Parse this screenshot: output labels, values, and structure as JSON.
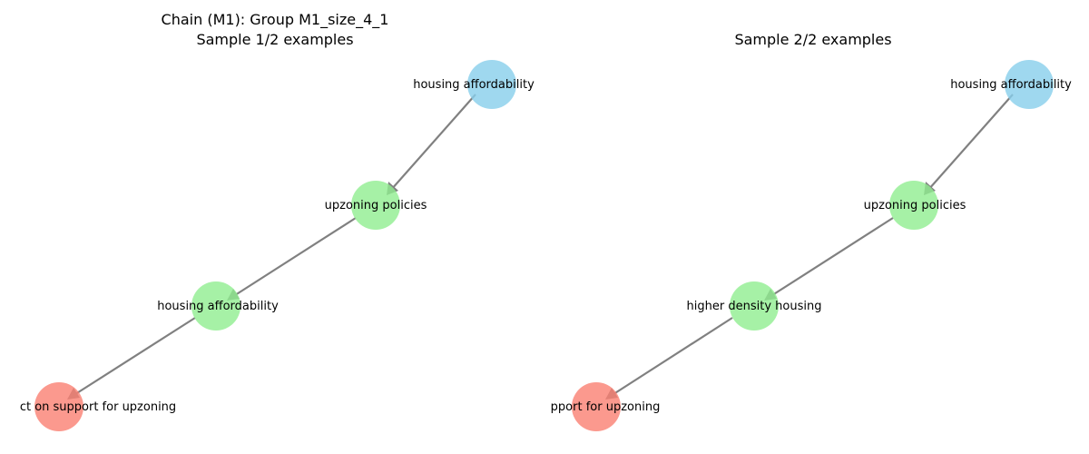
{
  "panels": [
    {
      "title_line1": "Chain (M1): Group M1_size_4_1",
      "title_line2": "Sample 1/2 examples",
      "nodes": [
        {
          "label": "housing affordability",
          "color": "#87CEEB"
        },
        {
          "label": "upzoning policies",
          "color": "#90EE90"
        },
        {
          "label": "housing affordability",
          "color": "#90EE90"
        },
        {
          "label": "ct on support for upzoning",
          "color": "#FA8072"
        }
      ]
    },
    {
      "title_line1": "",
      "title_line2": "Sample 2/2 examples",
      "nodes": [
        {
          "label": "housing affordability",
          "color": "#87CEEB"
        },
        {
          "label": "upzoning policies",
          "color": "#90EE90"
        },
        {
          "label": "higher density housing",
          "color": "#90EE90"
        },
        {
          "label": "pport for upzoning",
          "color": "#FA8072"
        }
      ]
    }
  ]
}
